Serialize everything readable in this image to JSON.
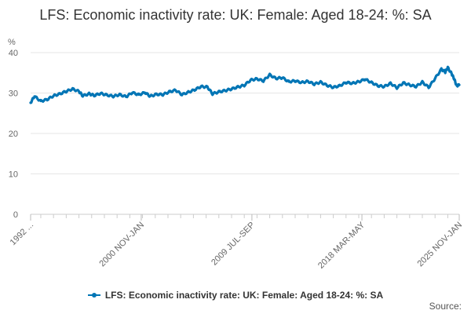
{
  "chart_data": {
    "type": "line",
    "title": "LFS: Economic inactivity rate: UK: Female: Aged 18-24: %: SA",
    "ylabel": "%",
    "xlabel": "",
    "ylim": [
      0,
      40
    ],
    "yticks": [
      0,
      10,
      20,
      30,
      40
    ],
    "grid": true,
    "legend_position": "bottom",
    "x_tick_labels": [
      "1992 ...",
      "2000 NOV-JAN",
      "2009 JUL-SEP",
      "2018 MAR-MAY",
      "2025 NOV-JAN"
    ],
    "x_tick_years": [
      1992.2,
      2000.9,
      2009.6,
      2018.25,
      2025.9
    ],
    "x_start": 1992.2,
    "x_end": 2025.9,
    "series": [
      {
        "name": "LFS: Economic inactivity rate: UK: Female: Aged 18-24: %: SA",
        "color": "#0075b5",
        "points": [
          [
            1992.2,
            27.6
          ],
          [
            1992.5,
            29.2
          ],
          [
            1993.0,
            28.0
          ],
          [
            1993.5,
            28.4
          ],
          [
            1994.0,
            29.3
          ],
          [
            1994.5,
            29.8
          ],
          [
            1995.0,
            30.4
          ],
          [
            1995.5,
            31.0
          ],
          [
            1996.0,
            30.4
          ],
          [
            1996.3,
            29.3
          ],
          [
            1996.8,
            29.8
          ],
          [
            1997.2,
            29.4
          ],
          [
            1997.7,
            29.9
          ],
          [
            1998.2,
            29.5
          ],
          [
            1998.7,
            29.2
          ],
          [
            1999.2,
            29.6
          ],
          [
            1999.7,
            29.1
          ],
          [
            2000.2,
            30.1
          ],
          [
            2000.7,
            29.6
          ],
          [
            2001.2,
            30.1
          ],
          [
            2001.6,
            29.2
          ],
          [
            2002.1,
            29.7
          ],
          [
            2002.6,
            29.6
          ],
          [
            2003.1,
            30.3
          ],
          [
            2003.6,
            30.7
          ],
          [
            2004.1,
            29.6
          ],
          [
            2004.6,
            30.2
          ],
          [
            2005.1,
            30.8
          ],
          [
            2005.6,
            31.6
          ],
          [
            2006.1,
            31.5
          ],
          [
            2006.5,
            29.8
          ],
          [
            2007.0,
            30.3
          ],
          [
            2007.5,
            30.6
          ],
          [
            2008.0,
            31.0
          ],
          [
            2008.5,
            31.5
          ],
          [
            2009.0,
            31.9
          ],
          [
            2009.5,
            33.2
          ],
          [
            2010.0,
            33.5
          ],
          [
            2010.5,
            33.0
          ],
          [
            2011.0,
            34.5
          ],
          [
            2011.5,
            33.6
          ],
          [
            2012.0,
            33.8
          ],
          [
            2012.5,
            32.8
          ],
          [
            2013.0,
            33.0
          ],
          [
            2013.5,
            32.6
          ],
          [
            2014.0,
            32.9
          ],
          [
            2014.5,
            32.2
          ],
          [
            2015.0,
            32.7
          ],
          [
            2015.5,
            31.9
          ],
          [
            2016.0,
            31.4
          ],
          [
            2016.5,
            31.8
          ],
          [
            2017.0,
            32.6
          ],
          [
            2017.5,
            32.4
          ],
          [
            2018.0,
            32.8
          ],
          [
            2018.5,
            33.4
          ],
          [
            2019.0,
            32.6
          ],
          [
            2019.5,
            31.8
          ],
          [
            2020.0,
            31.6
          ],
          [
            2020.5,
            32.4
          ],
          [
            2021.0,
            31.3
          ],
          [
            2021.5,
            32.5
          ],
          [
            2022.0,
            32.0
          ],
          [
            2022.5,
            31.6
          ],
          [
            2023.0,
            32.7
          ],
          [
            2023.5,
            31.4
          ],
          [
            2024.0,
            33.6
          ],
          [
            2024.5,
            35.9
          ],
          [
            2024.8,
            35.2
          ],
          [
            2025.0,
            36.3
          ],
          [
            2025.3,
            34.8
          ],
          [
            2025.5,
            33.5
          ],
          [
            2025.7,
            31.8
          ],
          [
            2025.9,
            32.0
          ]
        ]
      }
    ]
  },
  "legend": {
    "label": "LFS: Economic inactivity rate: UK: Female: Aged 18-24: %: SA"
  },
  "footer": {
    "source_label": "Source:"
  }
}
